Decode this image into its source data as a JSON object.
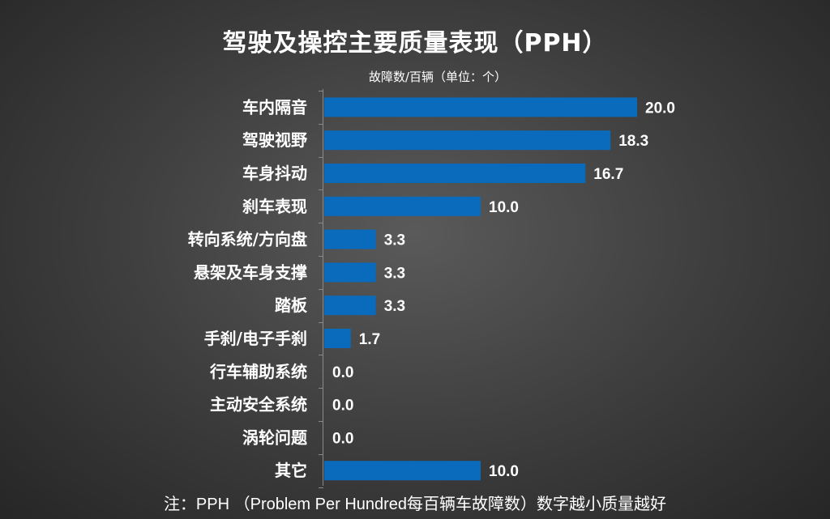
{
  "chart_data": {
    "type": "bar",
    "orientation": "horizontal",
    "title": "驾驶及操控主要质量表现（PPH）",
    "subtitle": "故障数/百辆（单位：个）",
    "categories": [
      "车内隔音",
      "驾驶视野",
      "车身抖动",
      "刹车表现",
      "转向系统/方向盘",
      "悬架及车身支撑",
      "踏板",
      "手刹/电子手刹",
      "行车辅助系统",
      "主动安全系统",
      "涡轮问题",
      "其它"
    ],
    "values": [
      20.0,
      18.3,
      16.7,
      10.0,
      3.3,
      3.3,
      3.3,
      1.7,
      0.0,
      0.0,
      0.0,
      10.0
    ],
    "value_labels": [
      "20.0",
      "18.3",
      "16.7",
      "10.0",
      "3.3",
      "3.3",
      "3.3",
      "1.7",
      "0.0",
      "0.0",
      "0.0",
      "10.0"
    ],
    "xlim": [
      0,
      20
    ],
    "bar_color": "#0a6bbd",
    "grid": false,
    "legend": "none",
    "note": "注：PPH （Problem Per Hundred每百辆车故障数）数字越小质量越好"
  }
}
